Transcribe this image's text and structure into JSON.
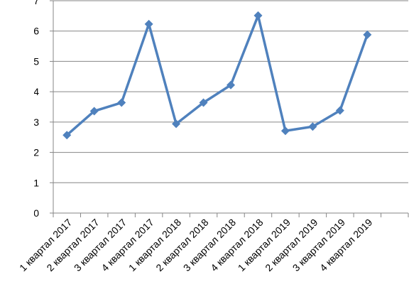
{
  "chart_data": {
    "type": "line",
    "categories": [
      "1 квартал 2017",
      "2 квартал 2017",
      "3 квартал 2017",
      "4 квартал 2017",
      "1 квартал 2018",
      "2 квартал 2018",
      "3 квартал 2018",
      "4 квартал 2018",
      "1 квартал 2019",
      "2 квартал 2019",
      "3 квартал 2019",
      "4 квартал 2019",
      null
    ],
    "series": [
      {
        "color": "#4f81bd",
        "values": [
          2.57,
          3.36,
          3.64,
          6.23,
          2.94,
          3.64,
          4.22,
          6.51,
          2.71,
          2.85,
          3.38,
          5.88,
          null
        ]
      }
    ],
    "ylim": [
      0,
      7
    ],
    "yticks": [
      0,
      1,
      2,
      3,
      4,
      5,
      6,
      7
    ],
    "grid": true
  }
}
